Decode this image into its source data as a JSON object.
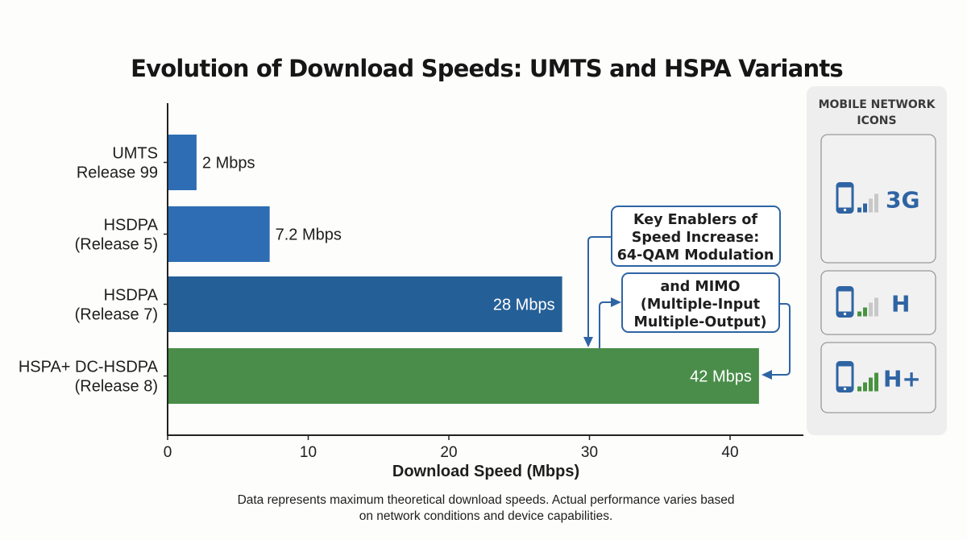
{
  "chart_data": {
    "type": "bar",
    "orientation": "horizontal",
    "title": "Evolution of Download Speeds: UMTS and HSPA Variants",
    "xlabel": "Download Speed (Mbps)",
    "ylabel": "",
    "xlim": [
      0,
      45
    ],
    "x_ticks": [
      0,
      10,
      20,
      30,
      40
    ],
    "grid": false,
    "categories": [
      [
        "UMTS",
        "Release 99"
      ],
      [
        "HSDPA",
        "(Release 5)"
      ],
      [
        "HSDPA",
        "(Release 7)"
      ],
      [
        "HSPA+ DC-HSDPA",
        "(Release 8)"
      ]
    ],
    "values": [
      2,
      7.2,
      28,
      42
    ],
    "value_labels": [
      "2 Mbps",
      "7.2 Mbps",
      "28 Mbps",
      "42 Mbps"
    ],
    "bar_colors": [
      "#2e6db4",
      "#2e6db4",
      "#255f97",
      "#4a8d4a"
    ],
    "annotations": {
      "box1": [
        "Key Enablers of",
        "Speed Increase:",
        "64-QAM Modulation"
      ],
      "box2": [
        "and MIMO",
        "(Multiple-Input",
        "Multiple-Output)"
      ]
    },
    "footnote": [
      "Data represents maximum theoretical download speeds. Actual performance varies based",
      "on network conditions and device capabilities."
    ]
  },
  "side_panel": {
    "title": [
      "MOBILE NETWORK",
      "ICONS"
    ],
    "items": [
      {
        "label": "3G",
        "icon": "phone-signal-icon",
        "bars_active": 2,
        "active_color": "#2f64a3"
      },
      {
        "label": "H",
        "icon": "phone-signal-icon",
        "bars_active": 2,
        "active_color": "#47933f"
      },
      {
        "label": "H+",
        "icon": "phone-signal-icon",
        "bars_active": 4,
        "active_color": "#47933f"
      }
    ]
  },
  "colors": {
    "accent_blue": "#2f64a3",
    "arrow": "#2f64a3",
    "panel_bg": "#eeeeee",
    "inactive_bar": "#c8c8c8"
  }
}
